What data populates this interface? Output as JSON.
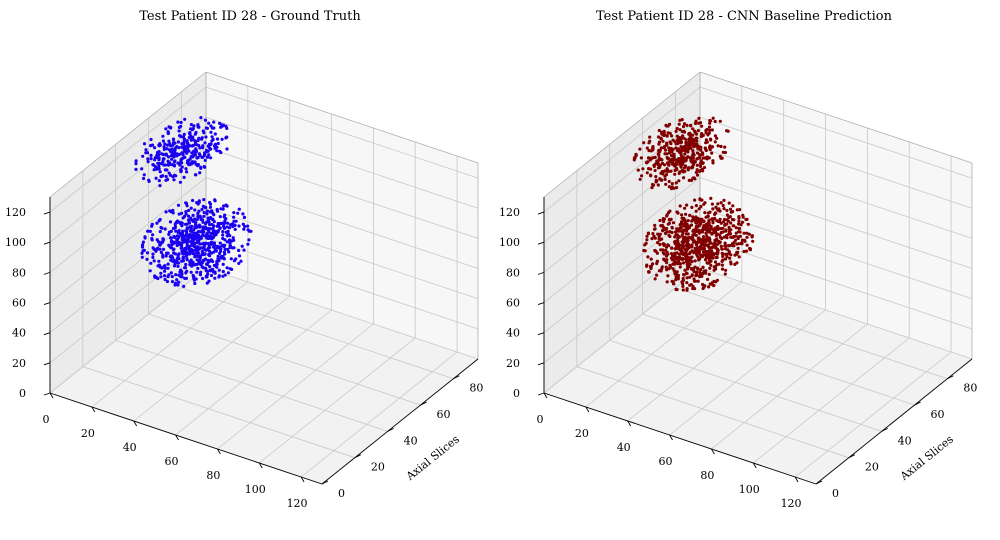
{
  "chart_data": [
    {
      "type": "scatter3d",
      "title": "Test Patient ID 28 - Ground Truth",
      "xlabel": "",
      "ylabel": "Axial Slices",
      "zlabel": "",
      "x_ticks": [
        0,
        20,
        40,
        60,
        80,
        100,
        120
      ],
      "y_ticks": [
        0,
        20,
        40,
        60,
        80
      ],
      "z_ticks": [
        0,
        20,
        40,
        60,
        80,
        100,
        120
      ],
      "xlim": [
        0,
        130
      ],
      "ylim": [
        0,
        95
      ],
      "zlim": [
        0,
        130
      ],
      "grid": true,
      "color": "#1a00f0",
      "clusters": [
        {
          "x_center": 18,
          "y_center": 58,
          "z_center": 118,
          "x_spread": 7,
          "y_spread": 10,
          "z_spread": 5,
          "points": 320
        },
        {
          "x_center": 56,
          "y_center": 18,
          "z_center": 110,
          "x_spread": 9,
          "y_spread": 10,
          "z_spread": 9,
          "points": 700
        }
      ]
    },
    {
      "type": "scatter3d",
      "title": "Test Patient ID 28 - CNN Baseline Prediction",
      "xlabel": "",
      "ylabel": "Axial Slices",
      "zlabel": "",
      "x_ticks": [
        0,
        20,
        40,
        60,
        80,
        100,
        120
      ],
      "y_ticks": [
        0,
        20,
        40,
        60,
        80
      ],
      "z_ticks": [
        0,
        20,
        40,
        60,
        80,
        100,
        120
      ],
      "xlim": [
        0,
        130
      ],
      "ylim": [
        0,
        95
      ],
      "zlim": [
        0,
        130
      ],
      "grid": true,
      "color": "#800000",
      "clusters": [
        {
          "x_center": 20,
          "y_center": 58,
          "z_center": 118,
          "x_spread": 7,
          "y_spread": 10,
          "z_spread": 6,
          "points": 420
        },
        {
          "x_center": 58,
          "y_center": 20,
          "z_center": 108,
          "x_spread": 9,
          "y_spread": 10,
          "z_spread": 10,
          "points": 800
        }
      ]
    }
  ]
}
